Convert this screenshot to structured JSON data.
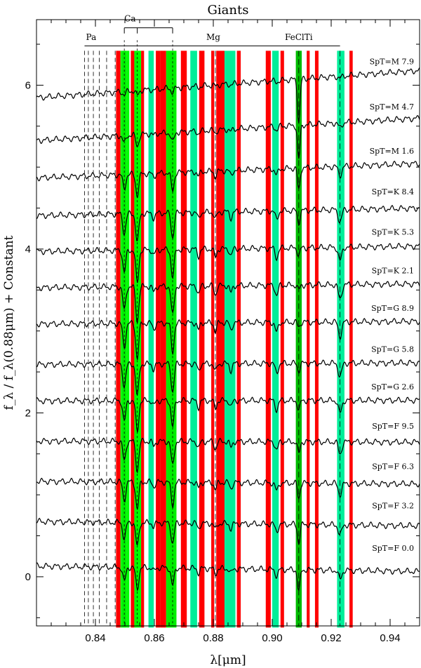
{
  "chart_data": {
    "type": "line",
    "title": "Giants",
    "xlabel": "λ[μm]",
    "ylabel": "f_λ / f_λ(0.88μm) + Constant",
    "xlim": [
      0.82,
      0.95
    ],
    "ylim": [
      -0.6,
      6.8
    ],
    "x_ticks": [
      0.84,
      0.86,
      0.88,
      0.9,
      0.92,
      0.94
    ],
    "x_tick_labels": [
      "0.84",
      "0.86",
      "0.88",
      "0.90",
      "0.92",
      "0.94"
    ],
    "y_ticks": [
      0,
      2,
      4,
      6
    ],
    "y_tick_labels": [
      "0",
      "2",
      "4",
      "6"
    ],
    "grid": false,
    "line_labels": {
      "Pa": "Pa",
      "Ca": "Ca",
      "Mg": "Mg",
      "FeClTi": "FeClTi"
    },
    "spectral_lines": {
      "Pa": [
        0.8363,
        0.8376,
        0.8393,
        0.8413,
        0.8438,
        0.8467
      ],
      "Ca": [
        0.8498,
        0.8542,
        0.8662
      ],
      "Mg": [
        0.8807
      ],
      "FeClTi": [
        0.909,
        0.923
      ]
    },
    "bands": [
      {
        "x0": 0.847,
        "x1": 0.8485,
        "color": "#ff0000"
      },
      {
        "x0": 0.8485,
        "x1": 0.849,
        "color": "#00ff00"
      },
      {
        "x0": 0.849,
        "x1": 0.8505,
        "color": "#00ee00"
      },
      {
        "x0": 0.8505,
        "x1": 0.8515,
        "color": "#00ff00"
      },
      {
        "x0": 0.852,
        "x1": 0.8532,
        "color": "#ff0000"
      },
      {
        "x0": 0.8532,
        "x1": 0.8555,
        "color": "#00ff00"
      },
      {
        "x0": 0.8555,
        "x1": 0.8565,
        "color": "#ff0000"
      },
      {
        "x0": 0.858,
        "x1": 0.8598,
        "color": "#00ee99"
      },
      {
        "x0": 0.8605,
        "x1": 0.862,
        "color": "#ff0000"
      },
      {
        "x0": 0.862,
        "x1": 0.864,
        "color": "#ff0000"
      },
      {
        "x0": 0.864,
        "x1": 0.8675,
        "color": "#00ee00"
      },
      {
        "x0": 0.869,
        "x1": 0.871,
        "color": "#ff0000"
      },
      {
        "x0": 0.8722,
        "x1": 0.8745,
        "color": "#00ee99"
      },
      {
        "x0": 0.8752,
        "x1": 0.877,
        "color": "#ff0000"
      },
      {
        "x0": 0.8793,
        "x1": 0.8803,
        "color": "#ff0000"
      },
      {
        "x0": 0.881,
        "x1": 0.8838,
        "color": "#ff0000"
      },
      {
        "x0": 0.8838,
        "x1": 0.8875,
        "color": "#00ee99"
      },
      {
        "x0": 0.888,
        "x1": 0.8893,
        "color": "#ff0000"
      },
      {
        "x0": 0.8978,
        "x1": 0.8995,
        "color": "#ff0000"
      },
      {
        "x0": 0.9,
        "x1": 0.9022,
        "color": "#00ee99"
      },
      {
        "x0": 0.9028,
        "x1": 0.904,
        "color": "#ff0000"
      },
      {
        "x0": 0.908,
        "x1": 0.91,
        "color": "#00bb00"
      },
      {
        "x0": 0.9117,
        "x1": 0.9127,
        "color": "#ff0000"
      },
      {
        "x0": 0.9145,
        "x1": 0.9157,
        "color": "#ff0000"
      },
      {
        "x0": 0.922,
        "x1": 0.9245,
        "color": "#00ee99"
      },
      {
        "x0": 0.9262,
        "x1": 0.9273,
        "color": "#ff0000"
      }
    ],
    "series": [
      {
        "name": "SpT=M 7.9",
        "offset": 6.0,
        "slope": 0.0255,
        "depth": 0.05,
        "label_y": 6.29
      },
      {
        "name": "SpT=M 4.7",
        "offset": 5.45,
        "slope": 0.021,
        "depth": 0.12,
        "label_y": 5.74
      },
      {
        "name": "SpT=M 1.6",
        "offset": 4.95,
        "slope": 0.0135,
        "depth": 0.22,
        "label_y": 5.2
      },
      {
        "name": "SpT=K 8.4",
        "offset": 4.45,
        "slope": 0.007,
        "depth": 0.3,
        "label_y": 4.7
      },
      {
        "name": "SpT=K 5.3",
        "offset": 4.0,
        "slope": 0.005,
        "depth": 0.34,
        "label_y": 4.21
      },
      {
        "name": "SpT=K 2.1",
        "offset": 3.55,
        "slope": 0.0035,
        "depth": 0.36,
        "label_y": 3.74
      },
      {
        "name": "SpT=G 8.9",
        "offset": 3.1,
        "slope": 0.0025,
        "depth": 0.36,
        "label_y": 3.28
      },
      {
        "name": "SpT=G 5.8",
        "offset": 2.6,
        "slope": 0.0015,
        "depth": 0.34,
        "label_y": 2.78
      },
      {
        "name": "SpT=G 2.6",
        "offset": 2.15,
        "slope": 0.0005,
        "depth": 0.32,
        "label_y": 2.32
      },
      {
        "name": "SpT=F 9.5",
        "offset": 1.65,
        "slope": -0.001,
        "depth": 0.3,
        "label_y": 1.84
      },
      {
        "name": "SpT=F 6.3",
        "offset": 1.15,
        "slope": -0.0025,
        "depth": 0.28,
        "label_y": 1.35
      },
      {
        "name": "SpT=F 3.2",
        "offset": 0.65,
        "slope": -0.004,
        "depth": 0.25,
        "label_y": 0.87
      },
      {
        "name": "SpT=F 0.0",
        "offset": 0.1,
        "slope": -0.005,
        "depth": 0.22,
        "label_y": 0.35
      }
    ]
  }
}
